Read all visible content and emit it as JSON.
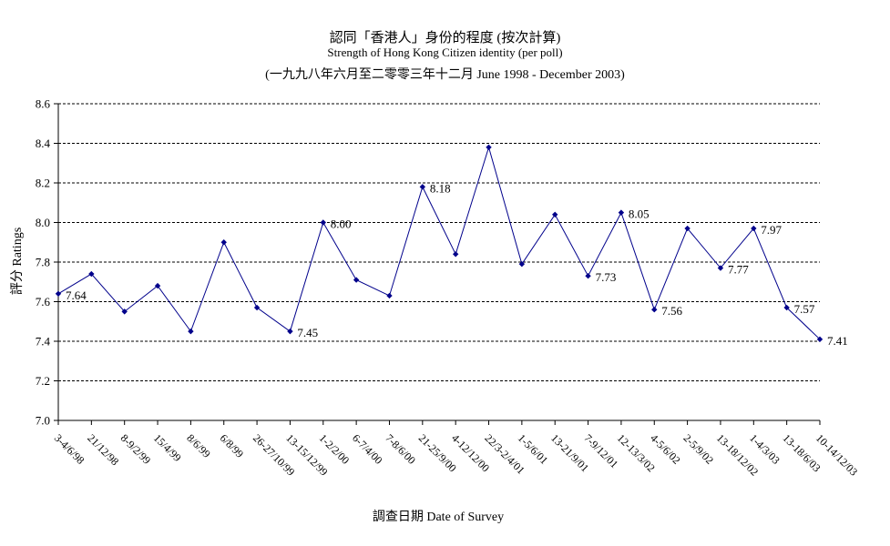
{
  "chart_data": {
    "type": "line",
    "title": "認同「香港人」身份的程度 (按次計算)",
    "subtitle": "Strength of Hong Kong Citizen identity (per poll)",
    "subtitle2": "(一九九八年六月至二零零三年十二月 June 1998 - December 2003)",
    "xlabel": "調查日期 Date of Survey",
    "ylabel": "評分 Ratings",
    "ylim": [
      7.0,
      8.6
    ],
    "yticks": [
      "7.0",
      "7.2",
      "7.4",
      "7.6",
      "7.8",
      "8.0",
      "8.2",
      "8.4",
      "8.6"
    ],
    "grid": true,
    "line_color": "#00008b",
    "categories": [
      "3-4/6/98",
      "21/12/98",
      "8-9/2/99",
      "15/4/99",
      "8/6/99",
      "6/8/99",
      "26-27/10/99",
      "13-15/12/99",
      "1-2/2/00",
      "6-7/4/00",
      "7-8/6/00",
      "21-25/9/00",
      "4-12/12/00",
      "22/3-2/4/01",
      "1-5/6/01",
      "13-21/9/01",
      "7-9/12/01",
      "12-13/3/02",
      "4-5/6/02",
      "2-5/9/02",
      "13-18/12/02",
      "1-4/3/03",
      "13-18/6/03",
      "10-14/12/03"
    ],
    "values": [
      7.64,
      7.74,
      7.55,
      7.68,
      7.45,
      7.9,
      7.57,
      7.45,
      8.0,
      7.71,
      7.63,
      8.18,
      7.84,
      8.38,
      7.79,
      8.04,
      7.73,
      8.05,
      7.56,
      7.97,
      7.77,
      7.97,
      7.57,
      7.41
    ],
    "data_labels": [
      {
        "index": 0,
        "text": "7.64"
      },
      {
        "index": 7,
        "text": "7.45"
      },
      {
        "index": 8,
        "text": "8.00"
      },
      {
        "index": 11,
        "text": "8.18"
      },
      {
        "index": 16,
        "text": "7.73"
      },
      {
        "index": 17,
        "text": "8.05"
      },
      {
        "index": 18,
        "text": "7.56"
      },
      {
        "index": 20,
        "text": "7.77"
      },
      {
        "index": 21,
        "text": "7.97"
      },
      {
        "index": 22,
        "text": "7.57"
      },
      {
        "index": 23,
        "text": "7.41"
      }
    ]
  }
}
